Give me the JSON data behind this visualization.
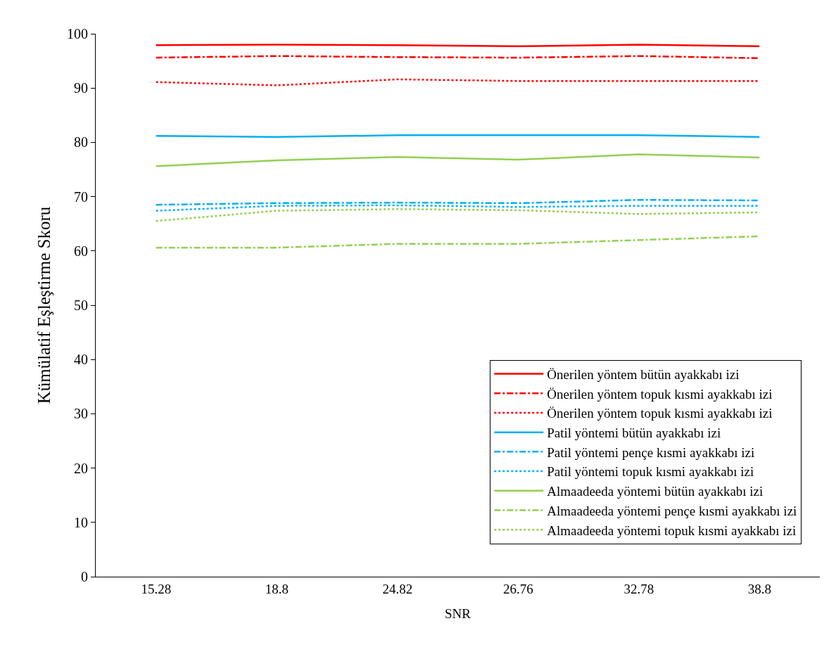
{
  "chart_data": {
    "type": "line",
    "xlabel": "SNR",
    "ylabel": "Kümülatif Eşleştirme Skoru",
    "categories": [
      "15.28",
      "18.8",
      "24.82",
      "26.76",
      "32.78",
      "38.8"
    ],
    "ylim": [
      0,
      100
    ],
    "yticks": [
      0,
      10,
      20,
      30,
      40,
      50,
      60,
      70,
      80,
      90,
      100
    ],
    "grid": false,
    "legend": "bottom right",
    "marker": "none",
    "series": [
      {
        "name": "Önerilen yöntem bütün ayakkabı izi",
        "color": "#ff0000",
        "line_style": "solid",
        "values": [
          97.9,
          98.0,
          97.9,
          97.7,
          98.0,
          97.7
        ]
      },
      {
        "name": "Önerilen yöntem topuk kısmi ayakkabı izi",
        "color": "#ff0000",
        "line_style": "dashed",
        "values": [
          95.6,
          95.9,
          95.7,
          95.6,
          95.9,
          95.5
        ]
      },
      {
        "name": "Önerilen yöntem topuk kısmi ayakkabı izi",
        "color": "#ff0000",
        "line_style": "dotted",
        "values": [
          91.1,
          90.5,
          91.6,
          91.3,
          91.3,
          91.3
        ]
      },
      {
        "name": "Patil yöntemi bütün ayakkabı izi",
        "color": "#00b0f0",
        "line_style": "solid",
        "values": [
          81.2,
          81.0,
          81.3,
          81.3,
          81.3,
          81.0
        ]
      },
      {
        "name": "Patil yöntemi pençe kısmi ayakkabı izi",
        "color": "#00b0f0",
        "line_style": "dashed",
        "values": [
          68.5,
          68.8,
          68.9,
          68.8,
          69.4,
          69.3
        ]
      },
      {
        "name": "Patil yöntemi topuk kısmi ayakkabı izi",
        "color": "#00b0f0",
        "line_style": "dotted",
        "values": [
          67.4,
          68.3,
          68.4,
          68.1,
          68.3,
          68.3
        ]
      },
      {
        "name": "Almaadeeda yöntemi bütün ayakkabı izi",
        "color": "#92d050",
        "line_style": "solid",
        "values": [
          75.6,
          76.7,
          77.3,
          76.8,
          77.8,
          77.2
        ]
      },
      {
        "name": "Almaadeeda yöntemi pençe kısmi ayakkabı izi",
        "color": "#92d050",
        "line_style": "dashed",
        "values": [
          60.6,
          60.6,
          61.3,
          61.3,
          62.0,
          62.7
        ]
      },
      {
        "name": "Almaadeeda yöntemi topuk kısmi ayakkabı izi",
        "color": "#92d050",
        "line_style": "dotted",
        "values": [
          65.5,
          67.4,
          67.7,
          67.5,
          66.8,
          67.1
        ]
      }
    ]
  }
}
